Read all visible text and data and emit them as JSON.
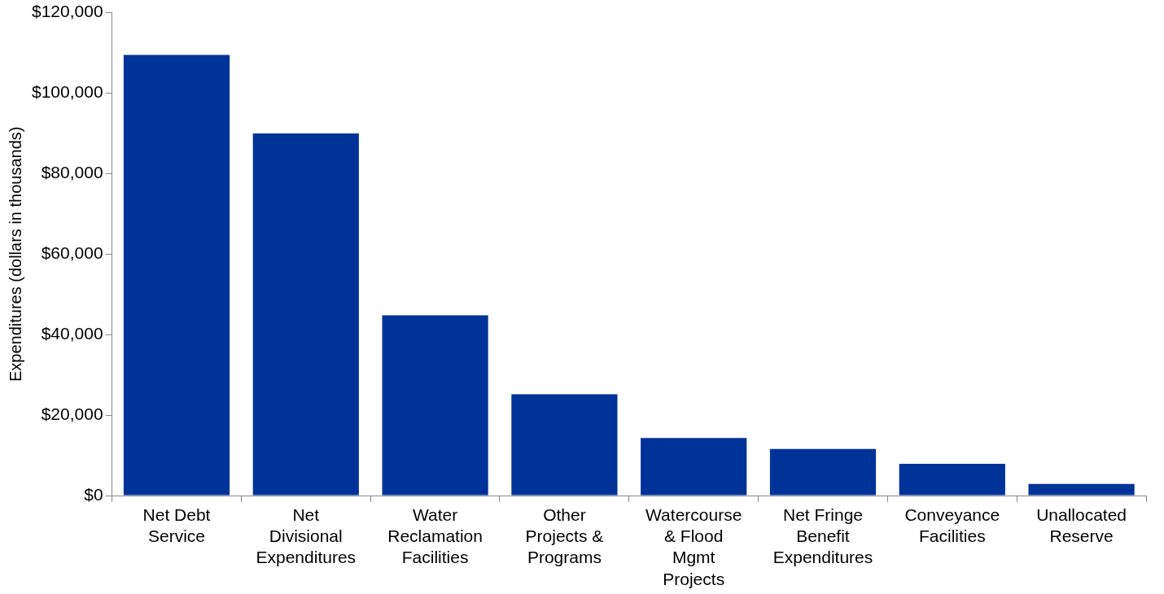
{
  "chart_data": {
    "type": "bar",
    "ylabel": "Expenditures (dollars in thousands)",
    "categories": [
      "Net Debt Service",
      "Net Divisional Expenditures",
      "Water Reclamation Facilities",
      "Other Projects & Programs",
      "Watercourse & Flood Mgmt Projects",
      "Net Fringe Benefit Expenditures",
      "Conveyance Facilities",
      "Unallocated Reserve"
    ],
    "values": [
      109500,
      90000,
      44800,
      25200,
      14300,
      11600,
      7900,
      2900
    ],
    "color": "#003399",
    "ylim": [
      0,
      120000
    ],
    "yticks": [
      {
        "value": 0,
        "label": "$0"
      },
      {
        "value": 20000,
        "label": "$20,000"
      },
      {
        "value": 40000,
        "label": "$40,000"
      },
      {
        "value": 60000,
        "label": "$60,000"
      },
      {
        "value": 80000,
        "label": "$80,000"
      },
      {
        "value": 100000,
        "label": "$100,000"
      },
      {
        "value": 120000,
        "label": "$120,000"
      }
    ],
    "grid": false,
    "legend": false
  }
}
